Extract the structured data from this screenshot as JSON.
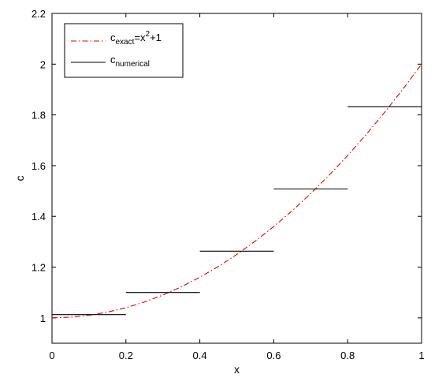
{
  "chart_data": {
    "type": "line",
    "xlabel": "x",
    "ylabel": "c",
    "xlim": [
      0,
      1
    ],
    "ylim": [
      0.9,
      2.2
    ],
    "xticks": [
      0,
      0.2,
      0.4,
      0.6,
      0.8,
      1
    ],
    "xtick_labels": [
      "0",
      "0.2",
      "0.4",
      "0.6",
      "0.8",
      "1"
    ],
    "yticks": [
      1,
      1.2,
      1.4,
      1.6,
      1.8,
      2,
      2.2
    ],
    "ytick_labels": [
      "1",
      "1.2",
      "1.4",
      "1.6",
      "1.8",
      "2",
      "2.2"
    ],
    "grid": false,
    "legend_position": "top-left",
    "series": [
      {
        "name": "c_exact = x^2+1",
        "legend": {
          "base": "c",
          "sub": "exact",
          "rest_pre": "=x",
          "sup": "2",
          "rest_post": "+1"
        },
        "style": "dash-dot",
        "color": "#e00000",
        "function": "x^2+1",
        "x": [
          0,
          0.05,
          0.1,
          0.15,
          0.2,
          0.25,
          0.3,
          0.35,
          0.4,
          0.45,
          0.5,
          0.55,
          0.6,
          0.65,
          0.7,
          0.75,
          0.8,
          0.85,
          0.9,
          0.95,
          1
        ],
        "y": [
          1,
          1.0025,
          1.01,
          1.0225,
          1.04,
          1.0625,
          1.09,
          1.1225,
          1.16,
          1.2025,
          1.25,
          1.3025,
          1.36,
          1.4225,
          1.49,
          1.5625,
          1.64,
          1.7225,
          1.81,
          1.9025,
          2
        ]
      },
      {
        "name": "c_numerical",
        "legend": {
          "base": "c",
          "sub": "numerical"
        },
        "style": "solid-steps",
        "color": "#000000",
        "segments": [
          {
            "x0": 0,
            "x1": 0.2,
            "y": 1.013
          },
          {
            "x0": 0.2,
            "x1": 0.4,
            "y": 1.1
          },
          {
            "x0": 0.4,
            "x1": 0.6,
            "y": 1.263
          },
          {
            "x0": 0.6,
            "x1": 0.8,
            "y": 1.508
          },
          {
            "x0": 0.8,
            "x1": 1.0,
            "y": 1.832
          }
        ]
      }
    ]
  }
}
